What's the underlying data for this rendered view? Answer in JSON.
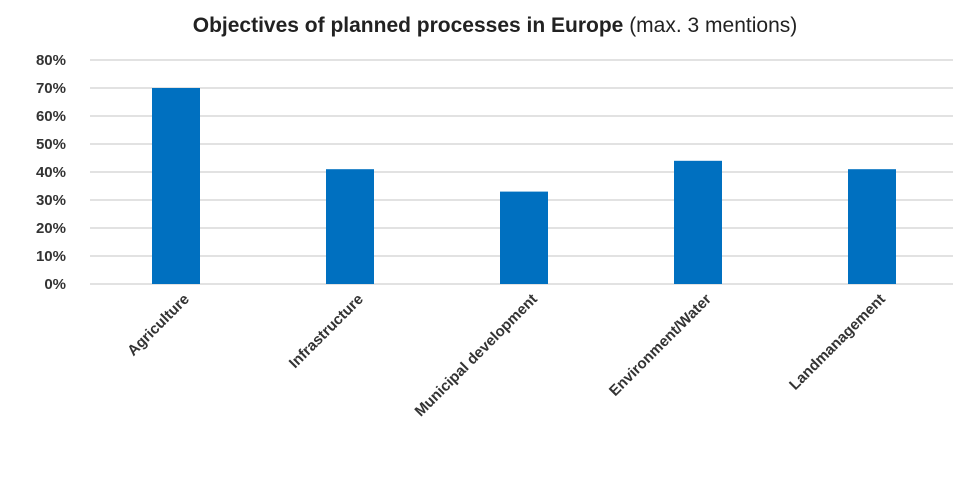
{
  "chart_data": {
    "type": "bar",
    "title_bold": "Objectives of planned processes in Europe",
    "title_normal": " (max. 3 mentions)",
    "categories": [
      "Agriculture",
      "Infrastructure",
      "Municipal development",
      "Environment/Water",
      "Landmanagement"
    ],
    "values": [
      70,
      41,
      33,
      44,
      41
    ],
    "ylim": [
      0,
      80
    ],
    "yticks": [
      "0%",
      "10%",
      "20%",
      "30%",
      "40%",
      "50%",
      "60%",
      "70%",
      "80%"
    ],
    "bar_color": "#0070C0",
    "grid_color": "#d9d9d9",
    "grid": true,
    "xlabel": "",
    "ylabel": ""
  }
}
